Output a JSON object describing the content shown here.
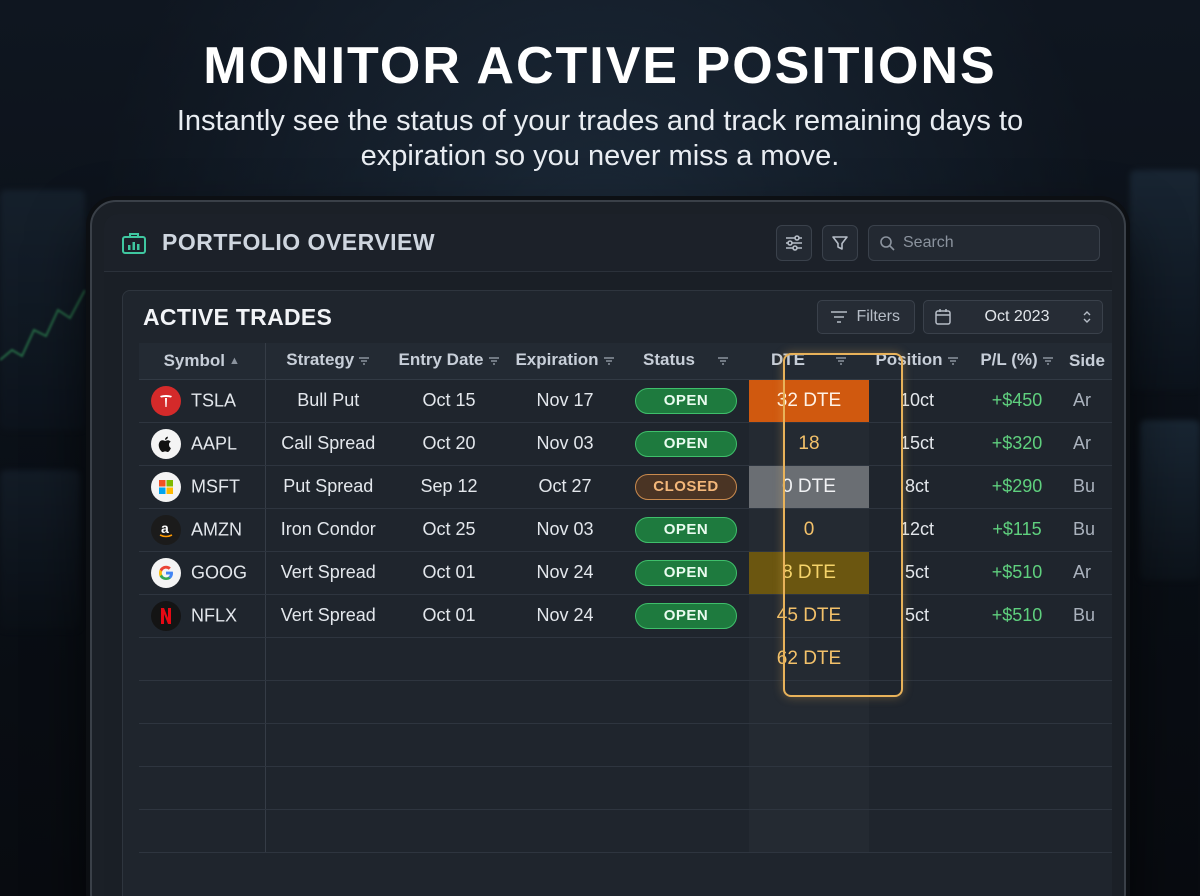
{
  "hero": {
    "title": "MONITOR ACTIVE POSITIONS",
    "subtitle": "Instantly see the status of your trades and track remaining days to expiration so you never miss a move."
  },
  "app": {
    "title": "PORTFOLIO OVERVIEW",
    "search_placeholder": "Search"
  },
  "panel": {
    "title": "ACTIVE TRADES",
    "filters_label": "Filters",
    "date_label": "Oct 2023"
  },
  "columns": [
    "Symbol",
    "Strategy",
    "Entry Date",
    "Expiration",
    "Status",
    "DTE",
    "Position",
    "P/L (%)",
    "Side"
  ],
  "rows": [
    {
      "symbol": "TSLA",
      "logo": "tesla-logo",
      "strategy": "Bull Put",
      "entry": "Oct 15",
      "expiration": "Nov 17",
      "status": "OPEN",
      "dte": "32 DTE",
      "position": "10ct",
      "pl": "+$450",
      "side": "Ar"
    },
    {
      "symbol": "AAPL",
      "logo": "apple-logo",
      "strategy": "Call Spread",
      "entry": "Oct 20",
      "expiration": "Nov 03",
      "status": "OPEN",
      "dte": "18",
      "position": "15ct",
      "pl": "+$320",
      "side": "Ar"
    },
    {
      "symbol": "MSFT",
      "logo": "microsoft-logo",
      "strategy": "Put Spread",
      "entry": "Sep 12",
      "expiration": "Oct 27",
      "status": "CLOSED",
      "dte": "0 DTE",
      "position": "8ct",
      "pl": "+$290",
      "side": "Bu"
    },
    {
      "symbol": "AMZN",
      "logo": "amazon-logo",
      "strategy": "Iron Condor",
      "entry": "Oct 25",
      "expiration": "Nov 03",
      "status": "OPEN",
      "dte": "0",
      "position": "12ct",
      "pl": "+$115",
      "side": "Bu"
    },
    {
      "symbol": "GOOG",
      "logo": "google-logo",
      "strategy": "Vert Spread",
      "entry": "Oct 01",
      "expiration": "Nov 24",
      "status": "OPEN",
      "dte": "8 DTE",
      "position": "5ct",
      "pl": "+$510",
      "side": "Ar"
    },
    {
      "symbol": "NFLX",
      "logo": "netflix-logo",
      "strategy": "Vert Spread",
      "entry": "Oct 01",
      "expiration": "Nov 24",
      "status": "OPEN",
      "dte": "45 DTE",
      "position": "5ct",
      "pl": "+$510",
      "side": "Bu"
    }
  ],
  "extra_dte": "62 DTE",
  "colors": {
    "accent": "#e8b25a",
    "open": "#1e7a3e",
    "closed": "#c98a4e",
    "profit": "#5fd07e",
    "dte_urgent": "#d0590f"
  }
}
